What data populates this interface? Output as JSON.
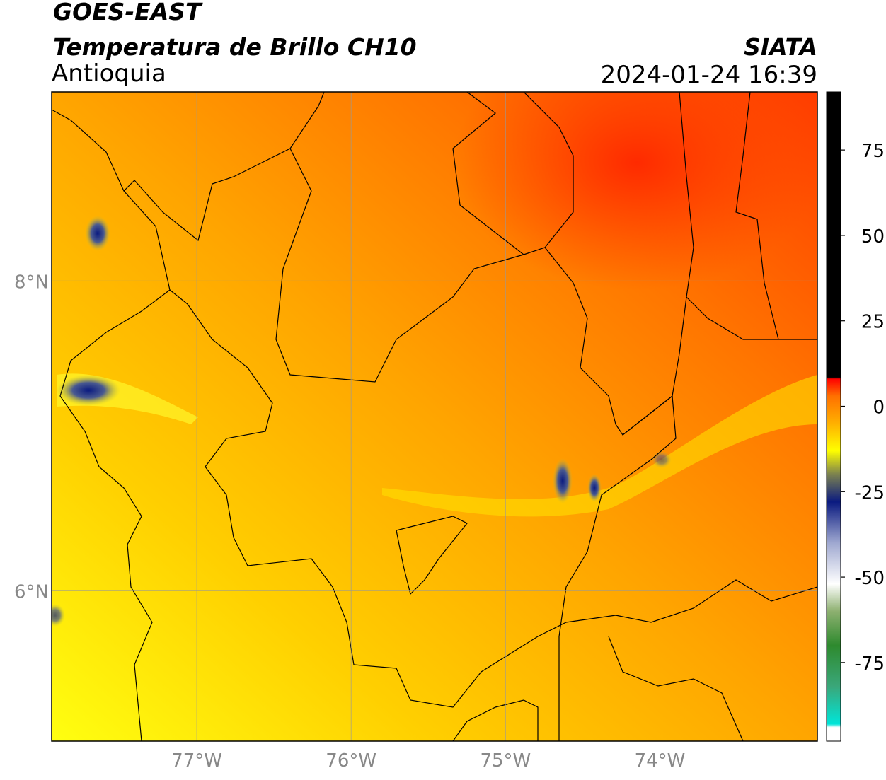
{
  "header": {
    "title": "GOES-EAST",
    "subtitle": "Temperatura de Brillo CH10",
    "region": "Antioquia",
    "source": "SIATA",
    "datetime": "2024-01-24 16:39"
  },
  "map": {
    "lonlim": [
      -77.94,
      -72.98
    ],
    "latlim": [
      5.03,
      9.22
    ],
    "lonticks": [
      {
        "value": -77,
        "label": "77°W"
      },
      {
        "value": -76,
        "label": "76°W"
      },
      {
        "value": -75,
        "label": "75°W"
      },
      {
        "value": -74,
        "label": "74°W"
      }
    ],
    "latticks": [
      {
        "value": 8,
        "label": "8°N"
      },
      {
        "value": 6,
        "label": "6°N"
      }
    ]
  },
  "colorbar": {
    "limits": [
      -98,
      92
    ],
    "ticks": [
      75,
      50,
      25,
      0,
      -25,
      -50,
      -75
    ],
    "stops": [
      {
        "value": -98,
        "color": "#ffffff"
      },
      {
        "value": -94,
        "color": "#ffffff"
      },
      {
        "value": -93,
        "color": "#00e5d8"
      },
      {
        "value": -82,
        "color": "#3aa77a"
      },
      {
        "value": -70,
        "color": "#2e8a2e"
      },
      {
        "value": -60,
        "color": "#8db070"
      },
      {
        "value": -52,
        "color": "#ffffff"
      },
      {
        "value": -40,
        "color": "#9fa8d0"
      },
      {
        "value": -28,
        "color": "#0a1a80"
      },
      {
        "value": -20,
        "color": "#7a8050"
      },
      {
        "value": -13,
        "color": "#ffff00"
      },
      {
        "value": -5,
        "color": "#ffb000"
      },
      {
        "value": 3,
        "color": "#ff7000"
      },
      {
        "value": 8,
        "color": "#ff0000"
      },
      {
        "value": 8.5,
        "color": "#000000"
      },
      {
        "value": 92,
        "color": "#000000"
      }
    ]
  }
}
